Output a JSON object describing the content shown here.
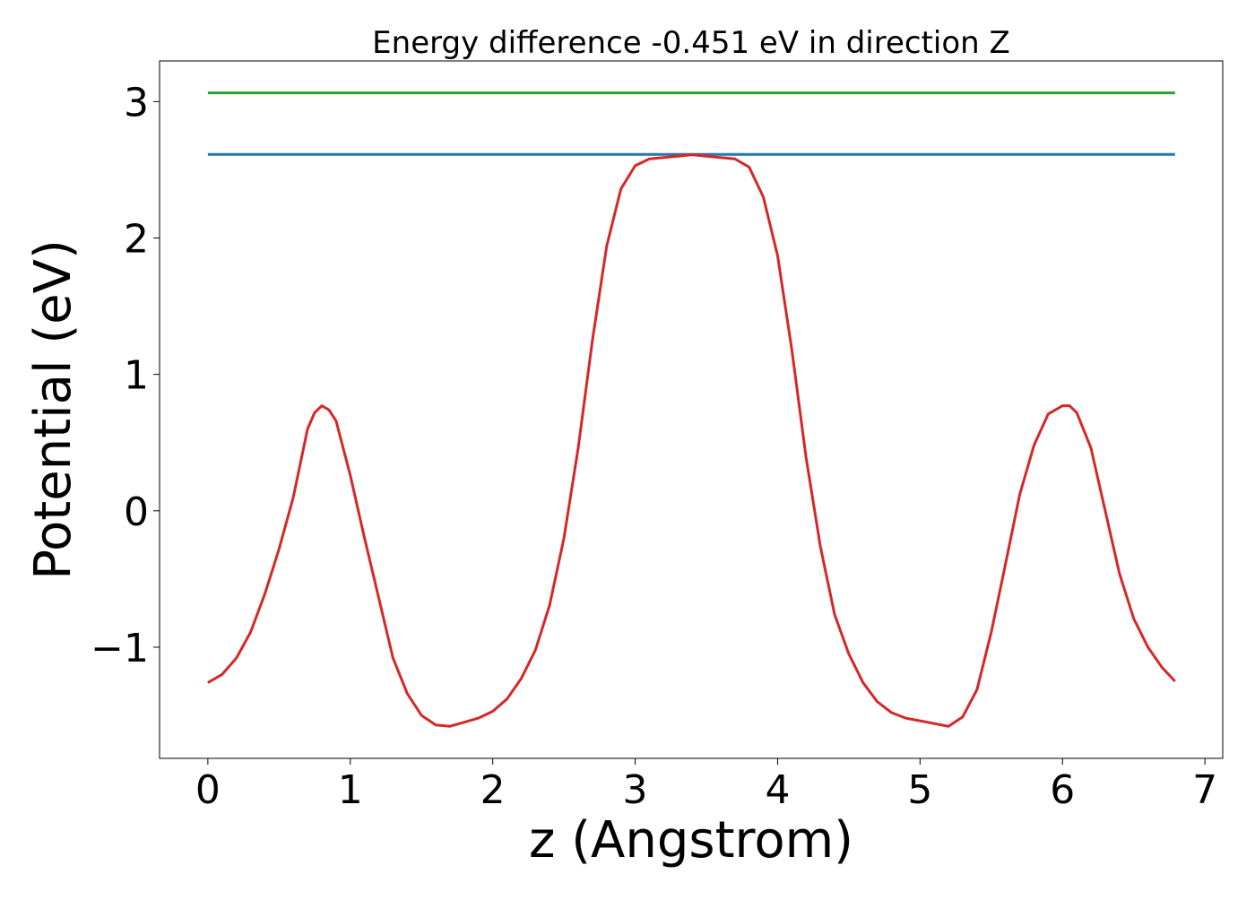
{
  "chart_data": {
    "type": "line",
    "title": "Energy difference -0.451 eV in direction Z",
    "xlabel": "z (Angstrom)",
    "ylabel": "Potential (eV)",
    "xlim": [
      -0.339,
      7.125
    ],
    "ylim": [
      -1.815,
      3.298
    ],
    "xticks": [
      0,
      1,
      2,
      3,
      4,
      5,
      6,
      7
    ],
    "yticks": [
      {
        "value": -1,
        "label": "−1"
      },
      0,
      1,
      2,
      3
    ],
    "grid": false,
    "series": [
      {
        "color": "#2ca02c",
        "x": [
          0,
          6.79
        ],
        "values": [
          3.064,
          3.064
        ]
      },
      {
        "color": "#1f77b4",
        "x": [
          0,
          6.79
        ],
        "values": [
          2.613,
          2.613
        ]
      },
      {
        "color": "#d62728",
        "x": [
          0,
          0.1,
          0.2,
          0.3,
          0.4,
          0.5,
          0.6,
          0.7,
          0.75,
          0.8,
          0.85,
          0.9,
          1.0,
          1.1,
          1.2,
          1.3,
          1.4,
          1.5,
          1.6,
          1.7,
          1.8,
          1.9,
          2.0,
          2.1,
          2.2,
          2.3,
          2.4,
          2.5,
          2.6,
          2.7,
          2.8,
          2.9,
          3.0,
          3.1,
          3.2,
          3.3,
          3.4,
          3.5,
          3.6,
          3.7,
          3.8,
          3.9,
          4.0,
          4.1,
          4.2,
          4.3,
          4.4,
          4.5,
          4.6,
          4.7,
          4.8,
          4.9,
          5.0,
          5.1,
          5.2,
          5.3,
          5.4,
          5.5,
          5.6,
          5.7,
          5.8,
          5.9,
          6.0,
          6.05,
          6.1,
          6.2,
          6.3,
          6.4,
          6.5,
          6.6,
          6.7,
          6.79
        ],
        "values": [
          -1.26,
          -1.2,
          -1.08,
          -0.89,
          -0.61,
          -0.28,
          0.1,
          0.6,
          0.72,
          0.77,
          0.74,
          0.66,
          0.26,
          -0.2,
          -0.64,
          -1.08,
          -1.34,
          -1.5,
          -1.57,
          -1.58,
          -1.55,
          -1.52,
          -1.47,
          -1.38,
          -1.23,
          -1.02,
          -0.69,
          -0.2,
          0.46,
          1.25,
          1.94,
          2.36,
          2.53,
          2.58,
          2.59,
          2.6,
          2.61,
          2.6,
          2.59,
          2.58,
          2.52,
          2.3,
          1.87,
          1.18,
          0.39,
          -0.26,
          -0.76,
          -1.05,
          -1.26,
          -1.4,
          -1.48,
          -1.52,
          -1.54,
          -1.56,
          -1.58,
          -1.51,
          -1.31,
          -0.89,
          -0.39,
          0.12,
          0.48,
          0.71,
          0.77,
          0.77,
          0.72,
          0.46,
          0.0,
          -0.46,
          -0.79,
          -1.0,
          -1.15,
          -1.25
        ]
      }
    ]
  }
}
